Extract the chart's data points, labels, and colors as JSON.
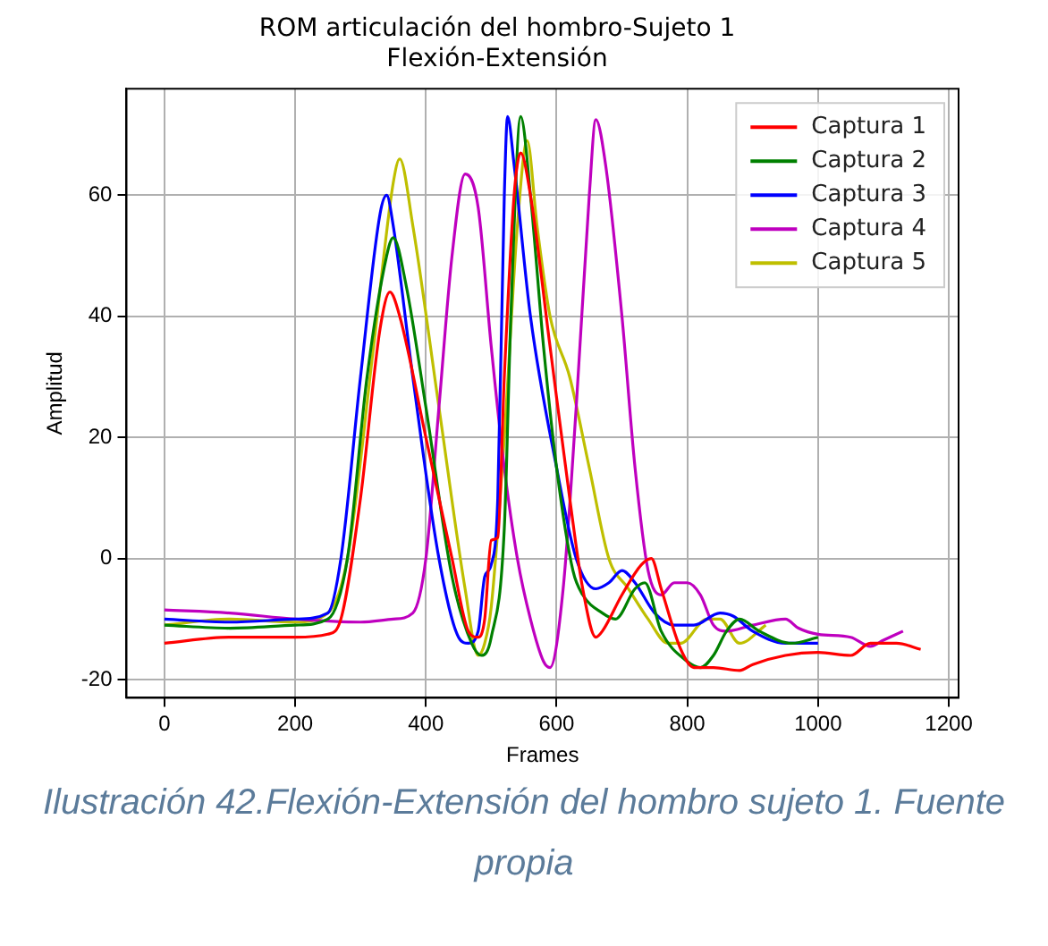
{
  "chart_data": {
    "type": "line",
    "title": "ROM articulación del hombro-Sujeto 1\nFlexión-Extensión",
    "xlabel": "Frames",
    "ylabel": "Amplitud",
    "annotations": [
      "Ilustración 42.Flexión-Extensión del hombro sujeto 1. Fuente propia"
    ],
    "xlim": [
      -58,
      1215
    ],
    "ylim": [
      -23,
      77.6
    ],
    "xticks": [
      0,
      200,
      400,
      600,
      800,
      1000,
      1200
    ],
    "yticks": [
      -20,
      0,
      20,
      40,
      60
    ],
    "grid": true,
    "legend": "top right",
    "marker": "none",
    "line_style": "solid",
    "series": [
      {
        "name": "Captura 1",
        "color": "#ff0000",
        "x": [
          0,
          100,
          200,
          250,
          270,
          300,
          330,
          345,
          360,
          400,
          440,
          465,
          480,
          490,
          500,
          510,
          520,
          535,
          545,
          560,
          590,
          620,
          640,
          660,
          670,
          700,
          730,
          745,
          760,
          790,
          810,
          840,
          880,
          900,
          950,
          1000,
          1050,
          1080,
          1120,
          1157
        ],
        "values": [
          -14,
          -13,
          -13,
          -12.5,
          -10,
          10,
          38,
          44,
          40,
          20,
          0,
          -12,
          -13,
          -10,
          3,
          3.5,
          30,
          60,
          67,
          60,
          35,
          10,
          -5,
          -13,
          -12,
          -6,
          -1,
          0,
          -5,
          -15,
          -18,
          -18,
          -18.5,
          -17.5,
          -16,
          -15.5,
          -16,
          -14,
          -14,
          -15
        ]
      },
      {
        "name": "Captura 2",
        "color": "#008000",
        "x": [
          0,
          100,
          200,
          250,
          280,
          310,
          340,
          350,
          370,
          400,
          440,
          470,
          485,
          500,
          520,
          530,
          545,
          560,
          580,
          600,
          625,
          640,
          670,
          690,
          720,
          735,
          760,
          800,
          820,
          840,
          860,
          880,
          910,
          960,
          1000
        ],
        "values": [
          -11,
          -11.5,
          -11,
          -10,
          0,
          30,
          50,
          53,
          45,
          25,
          -3,
          -14,
          -16,
          -13,
          5,
          40,
          73,
          60,
          35,
          15,
          -2,
          -6,
          -9,
          -10,
          -5,
          -4,
          -12,
          -17,
          -18,
          -16,
          -12,
          -10,
          -12,
          -14,
          -13
        ]
      },
      {
        "name": "Captura 3",
        "color": "#0000ff",
        "x": [
          0,
          100,
          200,
          250,
          270,
          300,
          330,
          340,
          350,
          380,
          420,
          450,
          465,
          480,
          490,
          500,
          510,
          520,
          525,
          535,
          560,
          600,
          630,
          660,
          680,
          700,
          720,
          750,
          780,
          810,
          850,
          870,
          900,
          950,
          1000
        ],
        "values": [
          -10,
          -10.5,
          -10,
          -9,
          0,
          30,
          57,
          60,
          55,
          30,
          0,
          -13,
          -14,
          -12,
          -3,
          -1,
          10,
          60,
          73,
          65,
          40,
          15,
          0,
          -5,
          -4,
          -2,
          -4,
          -9,
          -11,
          -11,
          -9,
          -9.5,
          -12,
          -14,
          -14
        ]
      },
      {
        "name": "Captura 4",
        "color": "#bf00bf",
        "x": [
          0,
          100,
          200,
          300,
          350,
          380,
          400,
          420,
          440,
          460,
          480,
          500,
          520,
          540,
          560,
          580,
          590,
          610,
          630,
          650,
          660,
          675,
          700,
          720,
          740,
          760,
          780,
          800,
          820,
          840,
          860,
          900,
          950,
          970,
          1000,
          1050,
          1080,
          1100,
          1130
        ],
        "values": [
          -8.5,
          -9,
          -10,
          -10.5,
          -10,
          -9,
          0,
          25,
          50,
          63.5,
          58,
          35,
          15,
          0,
          -10,
          -17,
          -18,
          -5,
          25,
          60,
          72.5,
          65,
          40,
          15,
          -2,
          -6,
          -4,
          -4,
          -6,
          -11,
          -12,
          -11,
          -10,
          -11.5,
          -12.5,
          -13,
          -14.5,
          -13.5,
          -12
        ]
      },
      {
        "name": "Captura 5",
        "color": "#bfbf00",
        "x": [
          0,
          100,
          200,
          250,
          280,
          320,
          350,
          360,
          380,
          420,
          460,
          480,
          490,
          500,
          520,
          540,
          555,
          570,
          590,
          620,
          650,
          680,
          710,
          740,
          770,
          790,
          830,
          850,
          880,
          920
        ],
        "values": [
          -11,
          -10,
          -10.5,
          -9,
          0,
          35,
          62,
          66,
          55,
          25,
          -5,
          -16,
          -14,
          -8,
          20,
          55,
          69,
          55,
          40,
          30,
          15,
          0,
          -5,
          -10,
          -14,
          -14,
          -10,
          -10,
          -14,
          -11
        ]
      }
    ]
  }
}
